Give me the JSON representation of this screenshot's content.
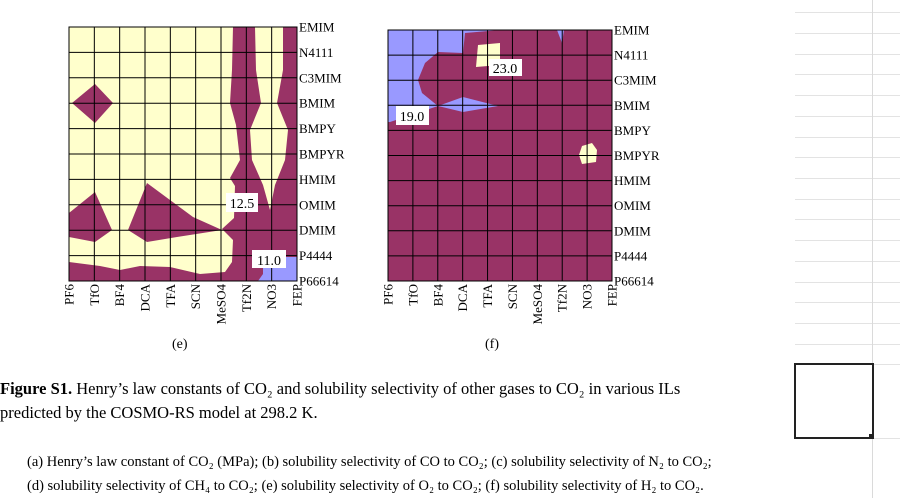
{
  "colors": {
    "low": "#9999FF",
    "mid": "#993366",
    "high": "#FFFFCC",
    "grid": "#000000"
  },
  "chart_data": [
    {
      "type": "heatmap",
      "panel_label": "(e)",
      "x_categories": [
        "PF6",
        "TfO",
        "BF4",
        "DCA",
        "TFA",
        "SCN",
        "MeSO4",
        "Tf2N",
        "NO3",
        "FEP"
      ],
      "y_categories": [
        "EMIM",
        "N4111",
        "C3MIM",
        "BMIM",
        "BMPY",
        "BMPYR",
        "HMIM",
        "OMIM",
        "DMIM",
        "P4444",
        "P66614"
      ],
      "contour_labels": [
        "12.5",
        "11.0"
      ],
      "legend": "none",
      "grid": true
    },
    {
      "type": "heatmap",
      "panel_label": "(f)",
      "x_categories": [
        "PF6",
        "TfO",
        "BF4",
        "DCA",
        "TFA",
        "SCN",
        "MeSO4",
        "Tf2N",
        "NO3",
        "FEP"
      ],
      "y_categories": [
        "EMIM",
        "N4111",
        "C3MIM",
        "BMIM",
        "BMPY",
        "BMPYR",
        "HMIM",
        "OMIM",
        "DMIM",
        "P4444",
        "P66614"
      ],
      "contour_labels": [
        "23.0",
        "19.0"
      ],
      "legend": "none",
      "grid": true
    }
  ],
  "caption": {
    "label": "Figure S1.",
    "line1": " Henry’s law constants of CO₂ and solubility selectivity of other gases to CO₂ in various ILs",
    "line2": "predicted by the COSMO-RS model at 298.2 K.",
    "sub1": "(a) Henry’s law constant of CO₂ (MPa); (b) solubility selectivity of CO to CO₂; (c) solubility selectivity of N₂ to CO₂;",
    "sub2": "(d) solubility selectivity of CH₄ to CO₂; (e) solubility selectivity of O₂ to CO₂; (f) solubility selectivity of H₂ to CO₂."
  }
}
